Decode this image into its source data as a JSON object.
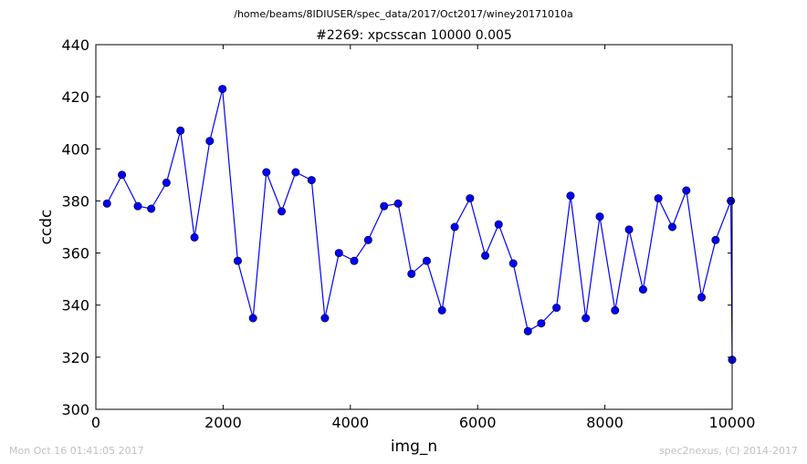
{
  "figure": {
    "supertitle": "/home/beams/8IDIUSER/spec_data/2017/Oct2017/winey20171010a",
    "footer_left": "Mon Oct 16 01:41:05 2017",
    "footer_right": "spec2nexus, (C) 2014-2017"
  },
  "chart_data": {
    "type": "line",
    "title": "#2269: xpcsscan 10000 0.005",
    "xlabel": "img_n",
    "ylabel": "ccdc",
    "xlim": [
      0,
      10000
    ],
    "ylim": [
      300,
      440
    ],
    "xticks": [
      "0",
      "2000",
      "4000",
      "6000",
      "8000",
      "10000"
    ],
    "yticks": [
      "300",
      "320",
      "340",
      "360",
      "380",
      "400",
      "420",
      "440"
    ],
    "grid": false,
    "line_color": "#0000ff",
    "marker_color": "#0000ff",
    "series": [
      {
        "x": [
          175,
          410,
          660,
          870,
          1110,
          1330,
          1550,
          1790,
          1990,
          2230,
          2470,
          2680,
          2920,
          3140,
          3390,
          3600,
          3820,
          4060,
          4280,
          4530,
          4750,
          4960,
          5200,
          5440,
          5640,
          5880,
          6120,
          6330,
          6560,
          6790,
          7000,
          7240,
          7460,
          7700,
          7920,
          8160,
          8380,
          8600,
          8840,
          9060,
          9280,
          9520,
          9740,
          9980,
          10000
        ],
        "y": [
          379,
          390,
          378,
          377,
          387,
          407,
          366,
          403,
          423,
          357,
          335,
          391,
          376,
          391,
          388,
          335,
          360,
          357,
          365,
          378,
          379,
          352,
          357,
          338,
          370,
          381,
          359,
          371,
          356,
          330,
          333,
          339,
          382,
          335,
          374,
          338,
          369,
          346,
          381,
          370,
          384,
          343,
          365,
          380,
          319
        ]
      }
    ]
  }
}
